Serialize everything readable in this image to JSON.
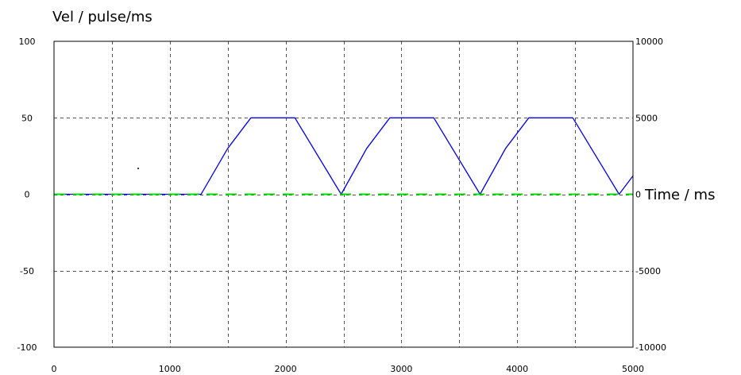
{
  "chart_data": {
    "type": "line",
    "title": "",
    "ylabel": "Vel / pulse/ms",
    "xlabel": "Time / ms",
    "xlim": [
      0,
      5000
    ],
    "ylim": [
      -100,
      100
    ],
    "ylim_right": [
      -10000,
      10000
    ],
    "grid": true,
    "legend": "none",
    "x_ticks": [
      "0",
      "1000",
      "2000",
      "3000",
      "4000",
      "5000"
    ],
    "y_ticks_left": [
      "100",
      "50",
      "0",
      "-50",
      "-100"
    ],
    "y_ticks_right": [
      "10000",
      "5000",
      "0",
      "-5000",
      "-10000"
    ],
    "series": [
      {
        "color": "#0000ee",
        "axis": "left",
        "style": "solid",
        "x": [
          0,
          1270,
          1500,
          1700,
          2080,
          2480,
          2700,
          2900,
          3280,
          3680,
          3900,
          4100,
          4480,
          4880,
          5000
        ],
        "y": [
          0,
          0,
          30,
          50,
          50,
          0,
          30,
          50,
          50,
          0,
          30,
          50,
          50,
          0,
          12
        ]
      },
      {
        "color": "#00dd00",
        "axis": "left",
        "style": "dashed",
        "x": [
          0,
          5000
        ],
        "y": [
          0,
          0
        ]
      }
    ]
  }
}
